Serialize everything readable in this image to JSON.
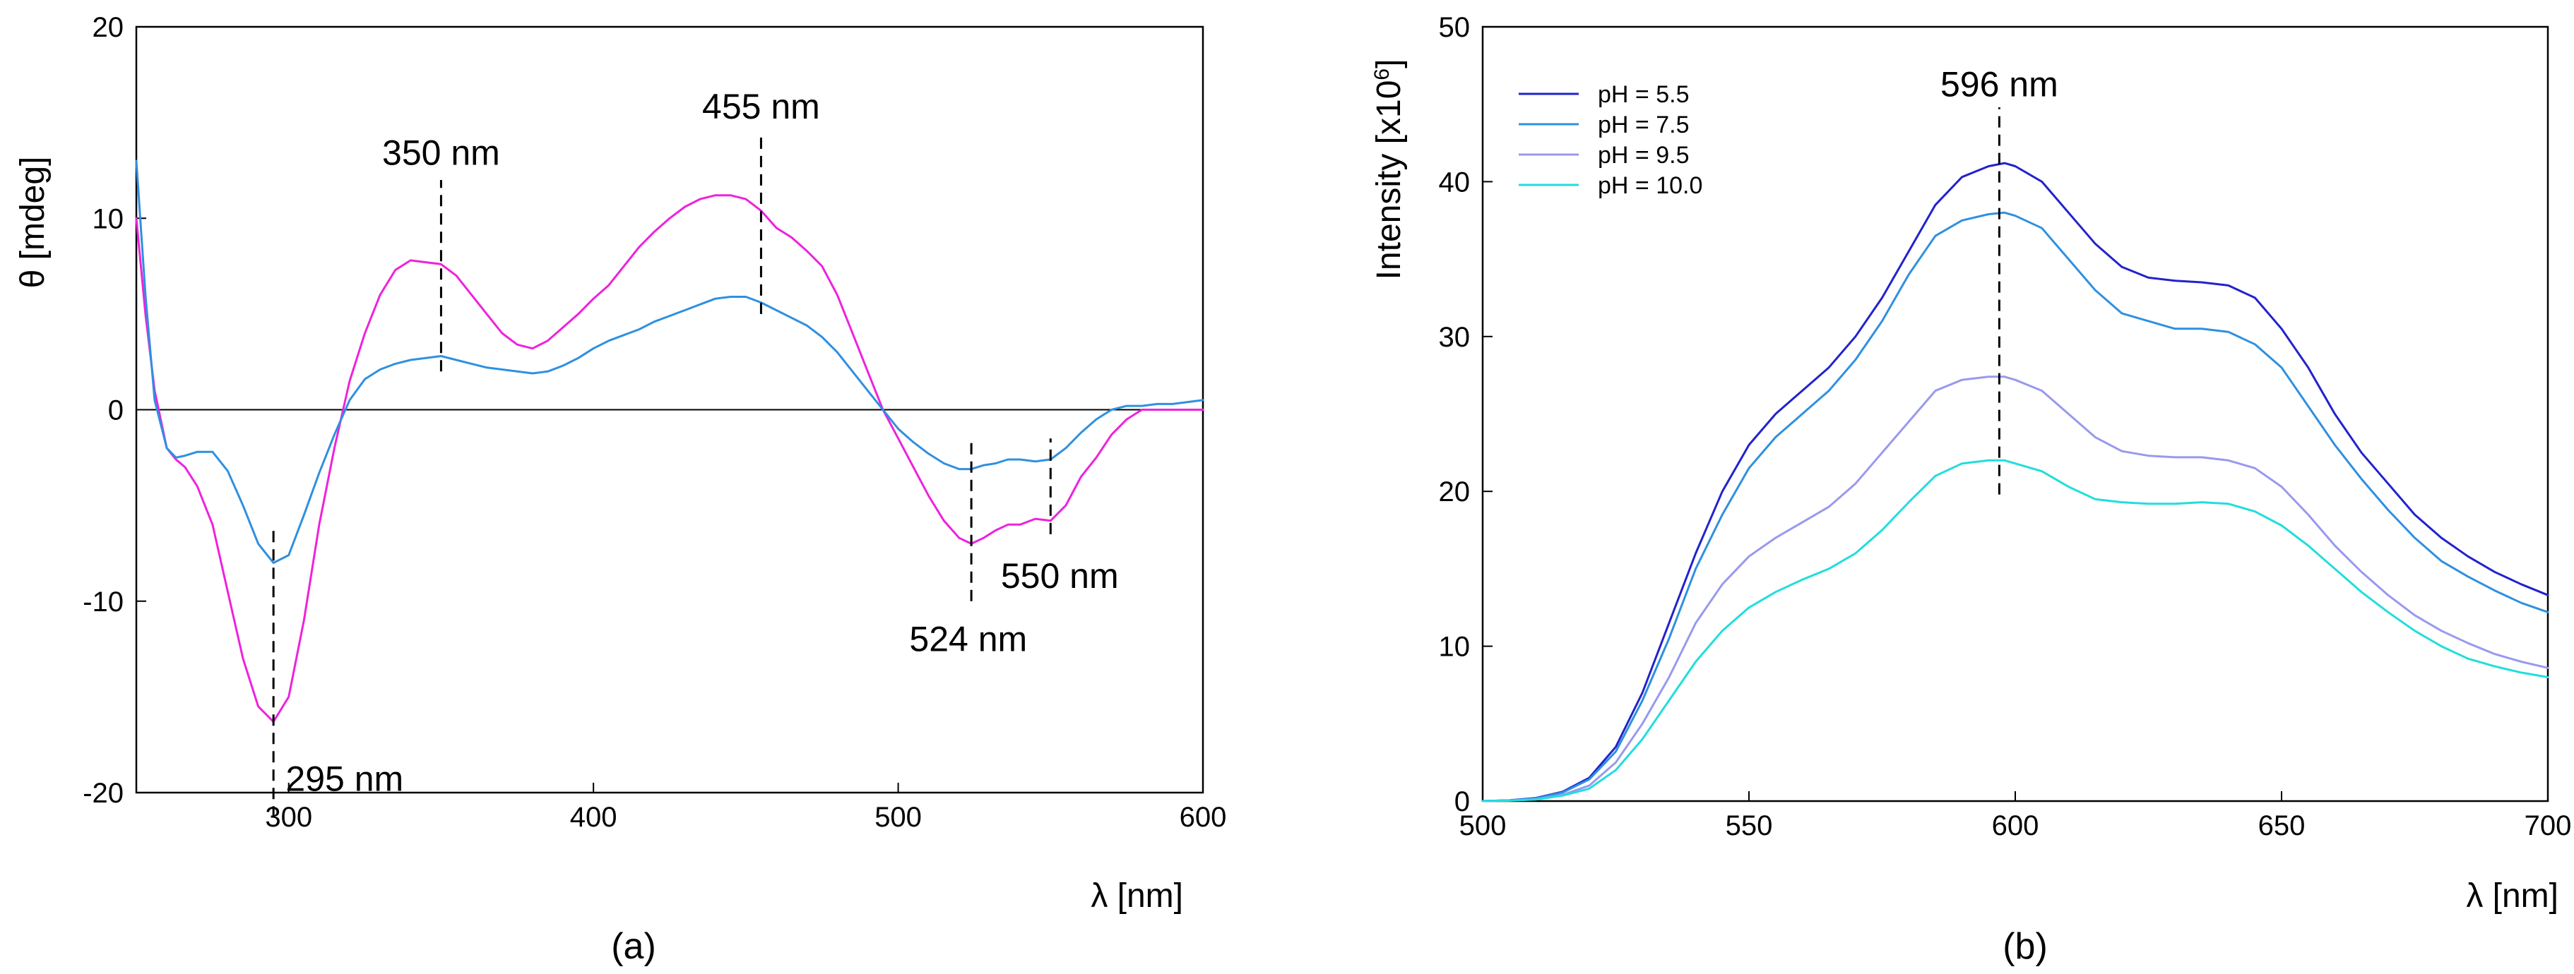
{
  "chart_data": [
    {
      "panel": "a",
      "caption": "(a)",
      "type": "line",
      "title": "",
      "xlabel": "λ [nm]",
      "ylabel": "θ [mdeg]",
      "xlim": [
        250,
        600
      ],
      "ylim": [
        -20,
        20
      ],
      "xticks": [
        300,
        400,
        500,
        600
      ],
      "yticks": [
        -20,
        -10,
        0,
        10,
        20
      ],
      "zero_line": true,
      "series": [
        {
          "name": "magenta curve",
          "color": "#ee22dd",
          "x": [
            250,
            253,
            256,
            260,
            263,
            266,
            270,
            275,
            280,
            285,
            290,
            295,
            300,
            305,
            310,
            315,
            320,
            325,
            330,
            335,
            340,
            345,
            350,
            355,
            360,
            365,
            370,
            375,
            380,
            385,
            390,
            395,
            400,
            405,
            410,
            415,
            420,
            425,
            430,
            435,
            440,
            445,
            450,
            455,
            460,
            465,
            470,
            475,
            480,
            485,
            490,
            495,
            500,
            505,
            510,
            515,
            520,
            524,
            528,
            532,
            536,
            540,
            545,
            550,
            555,
            560,
            565,
            570,
            575,
            580,
            585,
            590,
            595,
            600
          ],
          "y": [
            10,
            5,
            1,
            -2,
            -2.6,
            -3,
            -4,
            -6,
            -9.5,
            -13,
            -15.5,
            -16.3,
            -15,
            -11,
            -6,
            -2,
            1.5,
            4,
            6,
            7.3,
            7.8,
            7.7,
            7.6,
            7,
            6,
            5,
            4,
            3.4,
            3.2,
            3.6,
            4.3,
            5,
            5.8,
            6.5,
            7.5,
            8.5,
            9.3,
            10,
            10.6,
            11,
            11.2,
            11.2,
            11,
            10.4,
            9.5,
            9,
            8.3,
            7.5,
            6,
            4,
            2,
            0,
            -1.5,
            -3,
            -4.5,
            -5.8,
            -6.7,
            -7,
            -6.7,
            -6.3,
            -6,
            -6,
            -5.7,
            -5.8,
            -5,
            -3.5,
            -2.5,
            -1.3,
            -0.5,
            0,
            0,
            0,
            0,
            0
          ]
        },
        {
          "name": "blue curve",
          "color": "#2f90e0",
          "x": [
            250,
            253,
            256,
            260,
            263,
            266,
            270,
            275,
            280,
            285,
            290,
            295,
            300,
            305,
            310,
            315,
            320,
            325,
            330,
            335,
            340,
            345,
            350,
            355,
            360,
            365,
            370,
            375,
            380,
            385,
            390,
            395,
            400,
            405,
            410,
            415,
            420,
            425,
            430,
            435,
            440,
            445,
            450,
            455,
            460,
            465,
            470,
            475,
            480,
            485,
            490,
            495,
            500,
            505,
            510,
            515,
            520,
            524,
            528,
            532,
            536,
            540,
            545,
            550,
            555,
            560,
            565,
            570,
            575,
            580,
            585,
            590,
            595,
            600
          ],
          "y": [
            13,
            6,
            0.5,
            -2,
            -2.5,
            -2.4,
            -2.2,
            -2.2,
            -3.2,
            -5,
            -7,
            -8,
            -7.6,
            -5.5,
            -3.3,
            -1.3,
            0.5,
            1.6,
            2.1,
            2.4,
            2.6,
            2.7,
            2.8,
            2.6,
            2.4,
            2.2,
            2.1,
            2.0,
            1.9,
            2.0,
            2.3,
            2.7,
            3.2,
            3.6,
            3.9,
            4.2,
            4.6,
            4.9,
            5.2,
            5.5,
            5.8,
            5.9,
            5.9,
            5.6,
            5.2,
            4.8,
            4.4,
            3.8,
            3.0,
            2.0,
            1.0,
            0,
            -1,
            -1.7,
            -2.3,
            -2.8,
            -3.1,
            -3.1,
            -2.9,
            -2.8,
            -2.6,
            -2.6,
            -2.7,
            -2.6,
            -2,
            -1.2,
            -0.5,
            0,
            0.2,
            0.2,
            0.3,
            0.3,
            0.4,
            0.5
          ]
        }
      ],
      "annotations": [
        {
          "text": "350 nm",
          "x": 350,
          "y_from": 2,
          "y_to": 12,
          "label_x": 350,
          "label_y": 12.8,
          "anchor": "middle"
        },
        {
          "text": "455 nm",
          "x": 455,
          "y_from": 5,
          "y_to": 14.3,
          "label_x": 455,
          "label_y": 15.2,
          "anchor": "middle"
        },
        {
          "text": "295 nm",
          "x": 295,
          "y_from": -21.3,
          "y_to": -6.3,
          "label_x": 299,
          "label_y": -19.9,
          "anchor": "start"
        },
        {
          "text": "524 nm",
          "x": 524,
          "y_from": -10,
          "y_to": -1.5,
          "label_x": 523,
          "label_y": -12.6,
          "anchor": "middle"
        },
        {
          "text": "550 nm",
          "x": 550,
          "y_from": -6.5,
          "y_to": -1.5,
          "label_x": 553,
          "label_y": -9.3,
          "anchor": "middle"
        }
      ]
    },
    {
      "panel": "b",
      "caption": "(b)",
      "type": "line",
      "title": "",
      "xlabel": "λ [nm]",
      "ylabel": "Intensity [x10",
      "ylabel_sup": "6",
      "ylabel_end": "]",
      "xlim": [
        500,
        700
      ],
      "ylim": [
        0,
        50
      ],
      "xticks": [
        500,
        550,
        600,
        650,
        700
      ],
      "yticks": [
        0,
        10,
        20,
        30,
        40,
        50
      ],
      "legend_position": "top-left",
      "x": [
        500,
        505,
        510,
        515,
        520,
        525,
        530,
        535,
        540,
        545,
        550,
        555,
        560,
        565,
        570,
        575,
        580,
        585,
        590,
        595,
        598,
        600,
        605,
        610,
        615,
        620,
        625,
        630,
        635,
        640,
        645,
        650,
        655,
        660,
        665,
        670,
        675,
        680,
        685,
        690,
        695,
        700
      ],
      "series": [
        {
          "name": "pH = 5.5",
          "color": "#2222cc",
          "values": [
            0,
            0.05,
            0.2,
            0.6,
            1.5,
            3.5,
            7,
            11.5,
            16,
            20,
            23,
            25,
            26.5,
            28,
            30,
            32.5,
            35.5,
            38.5,
            40.3,
            41,
            41.2,
            41,
            40,
            38,
            36,
            34.5,
            33.8,
            33.6,
            33.5,
            33.3,
            32.5,
            30.5,
            28,
            25,
            22.5,
            20.5,
            18.5,
            17,
            15.8,
            14.8,
            14,
            13.3
          ]
        },
        {
          "name": "pH = 7.5",
          "color": "#2f90e0",
          "values": [
            0,
            0.04,
            0.18,
            0.55,
            1.4,
            3.2,
            6.5,
            10.5,
            15,
            18.5,
            21.5,
            23.5,
            25,
            26.5,
            28.5,
            31,
            34,
            36.5,
            37.5,
            37.9,
            38,
            37.8,
            37,
            35,
            33,
            31.5,
            31,
            30.5,
            30.5,
            30.3,
            29.5,
            28,
            25.5,
            23,
            20.8,
            18.8,
            17,
            15.5,
            14.5,
            13.6,
            12.8,
            12.2
          ]
        },
        {
          "name": "pH = 9.5",
          "color": "#9999ee",
          "values": [
            0,
            0.03,
            0.12,
            0.4,
            1,
            2.5,
            5,
            8,
            11.5,
            14,
            15.8,
            17,
            18,
            19,
            20.5,
            22.5,
            24.5,
            26.5,
            27.2,
            27.4,
            27.4,
            27.2,
            26.5,
            25,
            23.5,
            22.6,
            22.3,
            22.2,
            22.2,
            22,
            21.5,
            20.3,
            18.5,
            16.5,
            14.8,
            13.3,
            12,
            11,
            10.2,
            9.5,
            9,
            8.6
          ]
        },
        {
          "name": "pH = 10.0",
          "color": "#22dddd",
          "values": [
            0,
            0.03,
            0.1,
            0.35,
            0.8,
            2,
            4,
            6.5,
            9,
            11,
            12.5,
            13.5,
            14.3,
            15,
            16,
            17.5,
            19.3,
            21,
            21.8,
            22,
            22,
            21.8,
            21.3,
            20.3,
            19.5,
            19.3,
            19.2,
            19.2,
            19.3,
            19.2,
            18.7,
            17.8,
            16.5,
            15,
            13.5,
            12.2,
            11,
            10,
            9.2,
            8.7,
            8.3,
            8
          ]
        }
      ],
      "annotations": [
        {
          "text": "596 nm",
          "x": 597,
          "y_from": 19.8,
          "y_to": 44.8,
          "label_x": 597,
          "label_y": 45.5,
          "anchor": "middle"
        }
      ]
    }
  ]
}
